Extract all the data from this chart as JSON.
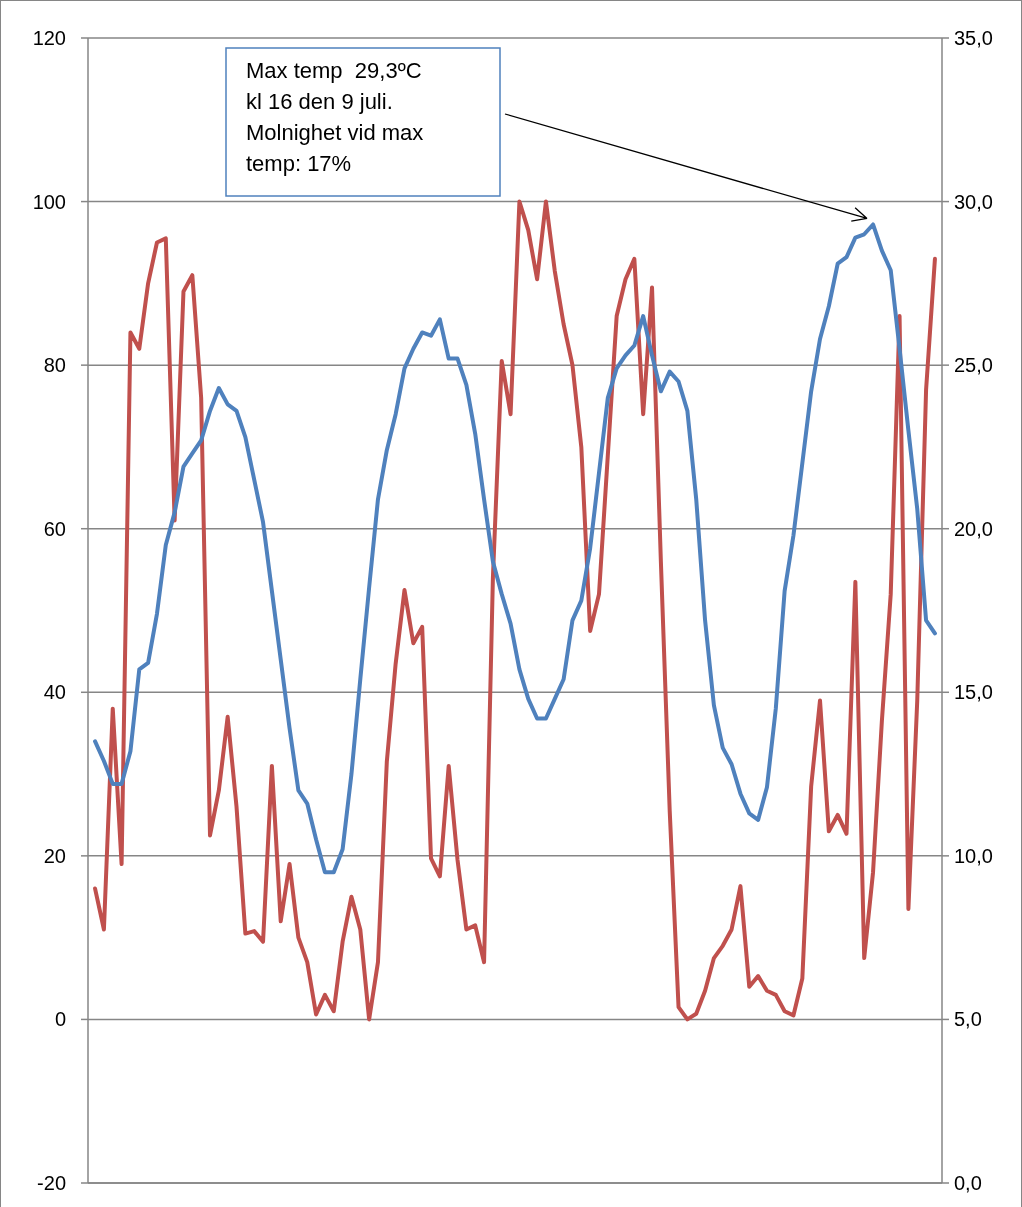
{
  "chart_data": {
    "type": "line",
    "categories": [
      null,
      null,
      null,
      null,
      null,
      null,
      null,
      null,
      null,
      null,
      null,
      null,
      null,
      null,
      null,
      null,
      null,
      null,
      null,
      null,
      null,
      null,
      null,
      null,
      null,
      null,
      null,
      null,
      null,
      null,
      null,
      null,
      null,
      null,
      null,
      null,
      null,
      null,
      null,
      null,
      null,
      null,
      null,
      null,
      null,
      null,
      null,
      null,
      null,
      null,
      null,
      null,
      null,
      null,
      null,
      null,
      null,
      null,
      null,
      null,
      null,
      null,
      null,
      null,
      null,
      null,
      null,
      null,
      null,
      null,
      null,
      null,
      null,
      null,
      null,
      null,
      null,
      null,
      null,
      null,
      null,
      null,
      null,
      null,
      null,
      null,
      null,
      null,
      null,
      null,
      null,
      null,
      null,
      null,
      null,
      null
    ],
    "series": [
      {
        "color": "#c0504d",
        "axis": "y",
        "values": [
          16,
          11,
          38,
          19,
          84,
          82,
          90,
          95,
          95.5,
          61,
          89,
          91,
          76,
          22.5,
          28,
          37,
          26,
          10.5,
          10.8,
          9.5,
          31,
          12,
          19,
          10,
          7,
          0.6,
          3,
          1,
          9.5,
          15,
          11,
          0,
          7,
          31.5,
          43.5,
          52.5,
          46,
          48,
          19.7,
          17.5,
          31,
          19.5,
          11,
          11.5,
          7,
          54,
          80.5,
          74,
          100,
          96.5,
          90.5,
          100,
          91.5,
          85,
          80,
          70,
          47.5,
          52,
          69,
          86,
          90.5,
          93,
          74,
          89.5,
          56,
          25.5,
          1.5,
          0,
          0.7,
          3.5,
          7.5,
          9,
          11,
          16.3,
          4,
          5.3,
          3.5,
          3,
          1,
          0.5,
          5,
          28.5,
          39,
          23,
          25,
          22.7,
          53.5,
          7.5,
          18,
          36.5,
          52,
          86,
          13.5,
          39,
          77,
          93
        ]
      },
      {
        "color": "#4f81bd",
        "axis": "y2",
        "values": [
          13.5,
          12.9,
          12.2,
          12.2,
          13.2,
          15.7,
          15.9,
          17.4,
          19.5,
          20.5,
          21.9,
          22.3,
          22.7,
          23.6,
          24.3,
          23.8,
          23.6,
          22.8,
          21.5,
          20.2,
          18.1,
          16,
          13.9,
          12,
          11.6,
          10.5,
          9.5,
          9.5,
          10.2,
          12.5,
          15.4,
          18.2,
          20.9,
          22.4,
          23.5,
          24.9,
          25.5,
          26,
          25.9,
          26.4,
          25.2,
          25.2,
          24.4,
          22.9,
          20.9,
          19,
          18,
          17.1,
          15.7,
          14.8,
          14.2,
          14.2,
          14.8,
          15.4,
          17.2,
          17.8,
          19.4,
          21.7,
          24,
          24.9,
          25.3,
          25.6,
          26.5,
          25.3,
          24.2,
          24.8,
          24.5,
          23.6,
          20.9,
          17.2,
          14.6,
          13.3,
          12.8,
          11.9,
          11.3,
          11.1,
          12.1,
          14.5,
          18.1,
          19.8,
          22,
          24.2,
          25.8,
          26.8,
          28.1,
          28.3,
          28.9,
          29,
          29.3,
          28.5,
          27.9,
          25.5,
          23,
          20.6,
          17.2,
          16.8
        ]
      }
    ],
    "ylim": [
      -20,
      120
    ],
    "yticks": [
      -20,
      0,
      20,
      40,
      60,
      80,
      100,
      120
    ],
    "y2lim": [
      0,
      35
    ],
    "y2ticks": [
      {
        "value": 0,
        "label": "0,0"
      },
      {
        "value": 5,
        "label": "5,0"
      },
      {
        "value": 10,
        "label": "10,0"
      },
      {
        "value": 15,
        "label": "15,0"
      },
      {
        "value": 20,
        "label": "20,0"
      },
      {
        "value": 25,
        "label": "25,0"
      },
      {
        "value": 30,
        "label": "30,0"
      },
      {
        "value": 35,
        "label": "35,0"
      }
    ],
    "grid": "y",
    "marker": "none",
    "line_style": "solid",
    "annotations": [
      "Max temp  29,3ºC\nkl 16 den 9 juli.\nMolnighet vid max\ntemp: 17%"
    ]
  }
}
